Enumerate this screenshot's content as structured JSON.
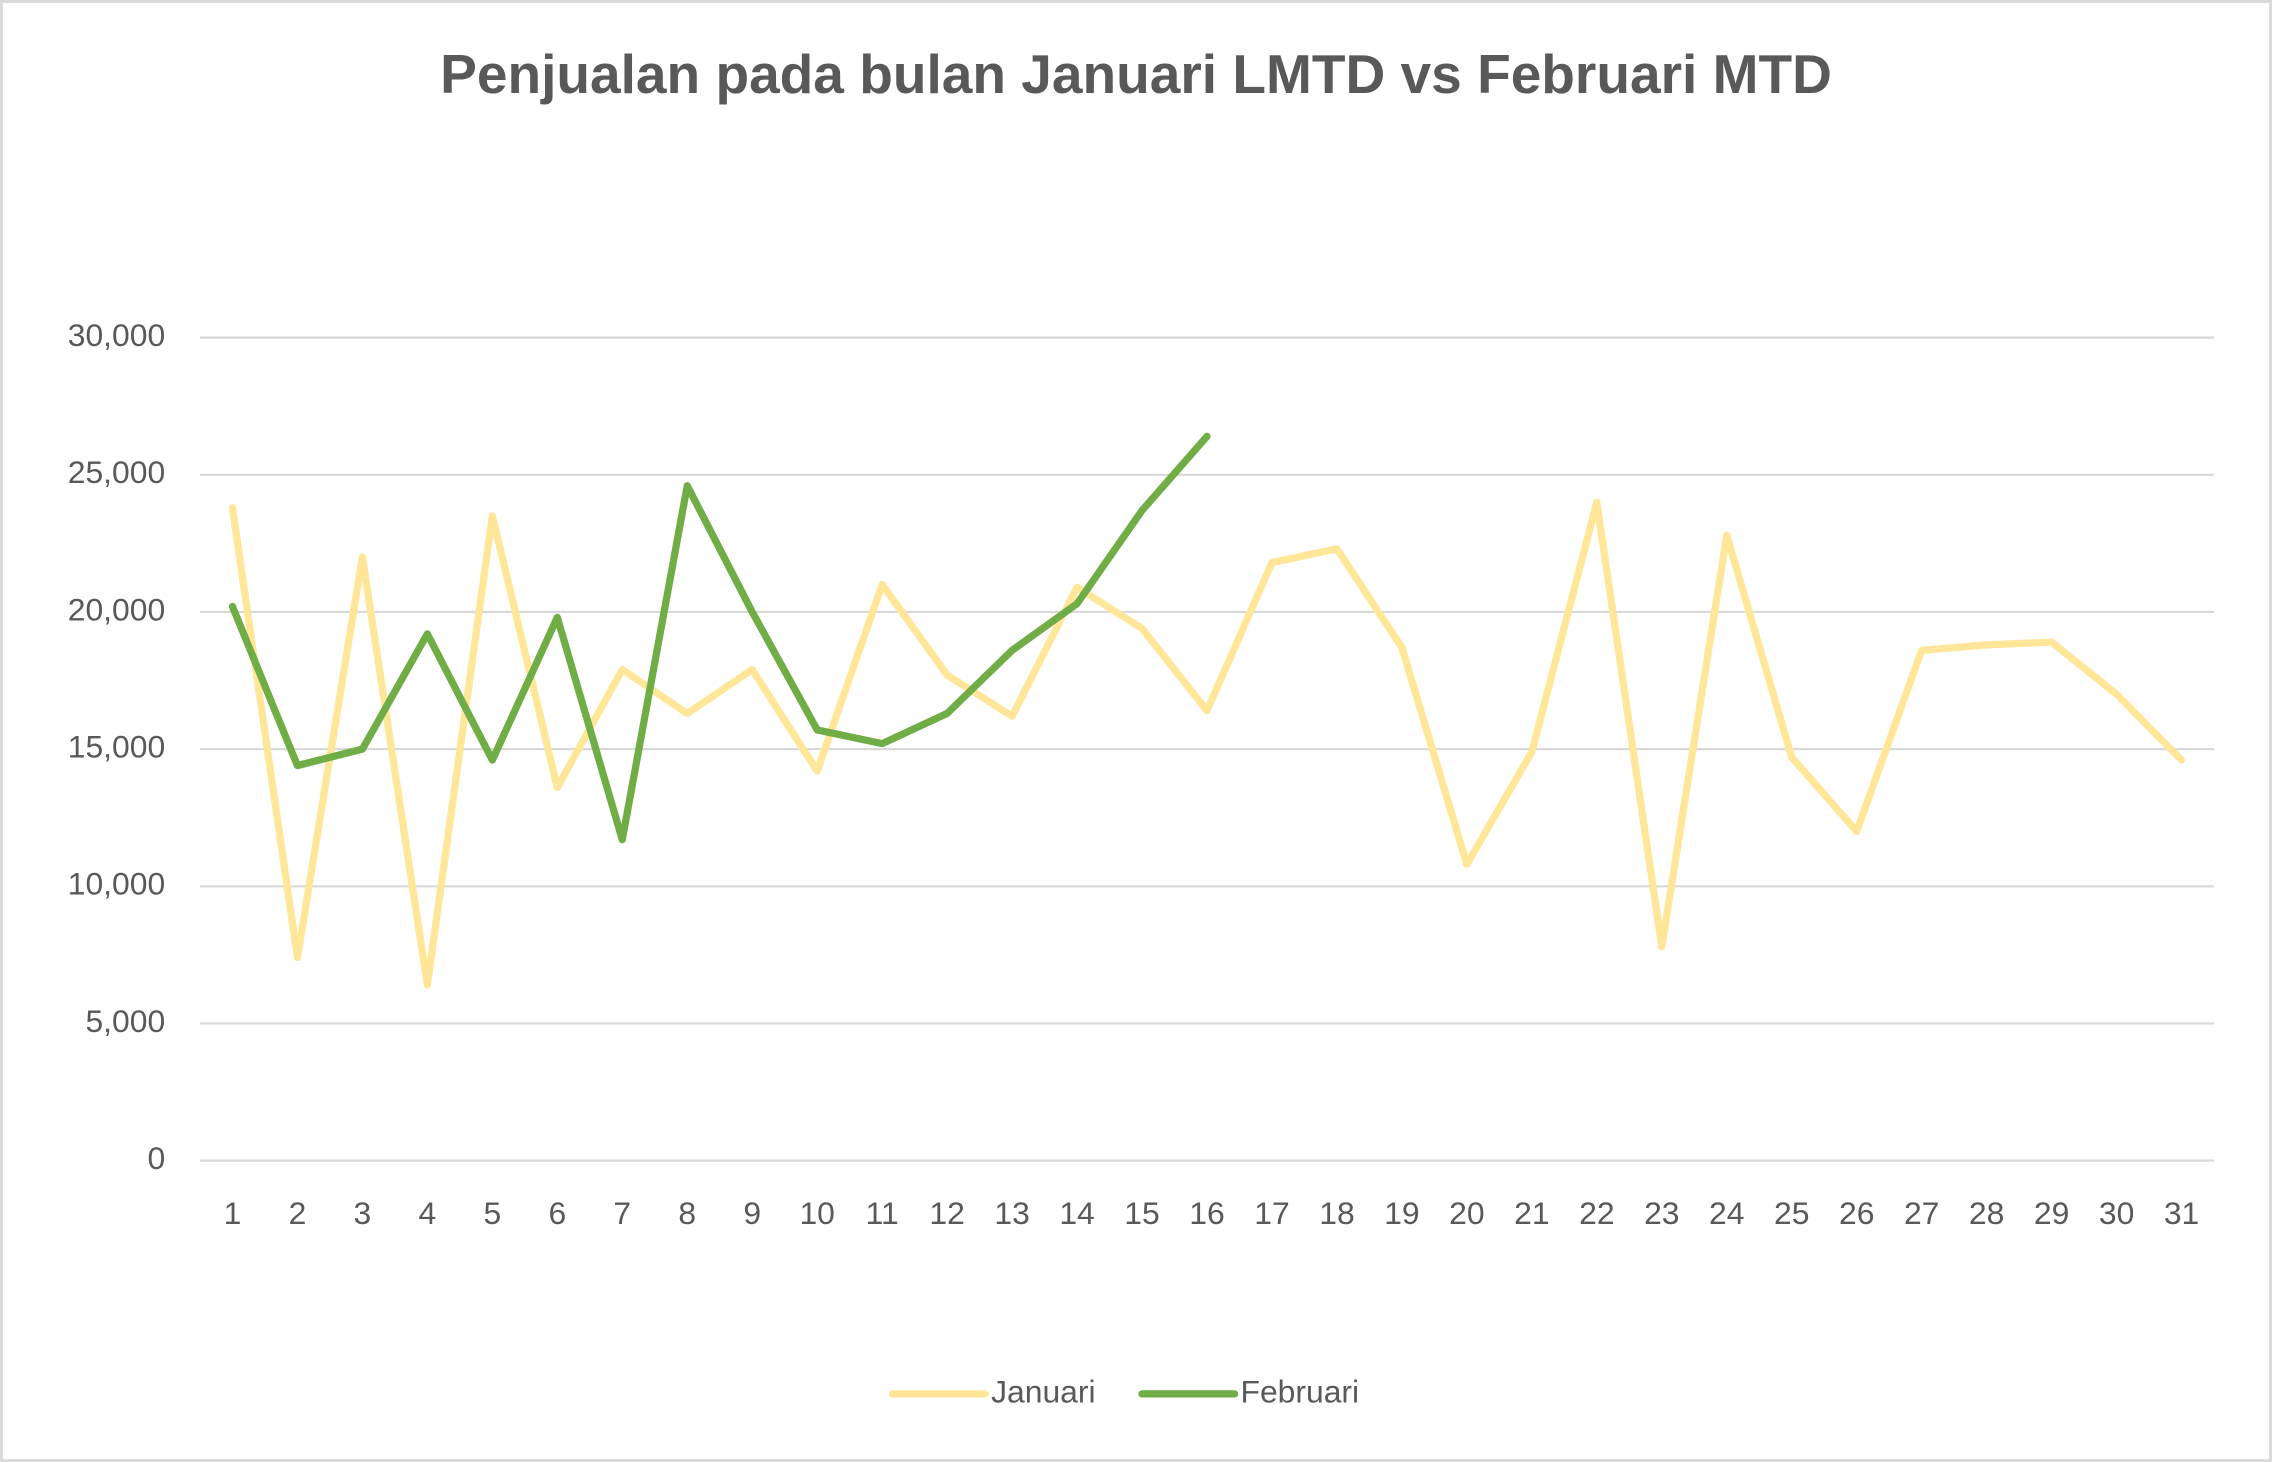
{
  "chart_data": {
    "type": "line",
    "title": "Penjualan pada bulan Januari LMTD vs Februari MTD",
    "categories": [
      "1",
      "2",
      "3",
      "4",
      "5",
      "6",
      "7",
      "8",
      "9",
      "10",
      "11",
      "12",
      "13",
      "14",
      "15",
      "16",
      "17",
      "18",
      "19",
      "20",
      "21",
      "22",
      "23",
      "24",
      "25",
      "26",
      "27",
      "28",
      "29",
      "30",
      "31"
    ],
    "series": [
      {
        "name": "Januari",
        "color": "#ffe699",
        "values": [
          23800,
          7400,
          22000,
          6400,
          23500,
          13600,
          17900,
          16300,
          17900,
          14200,
          21000,
          17700,
          16200,
          20900,
          19400,
          16400,
          21800,
          22300,
          18700,
          10800,
          14900,
          24000,
          7800,
          22800,
          14700,
          12000,
          18600,
          18800,
          18900,
          17000,
          14600
        ]
      },
      {
        "name": "Februari",
        "color": "#70ad47",
        "values": [
          20200,
          14400,
          15000,
          19200,
          14600,
          19800,
          11700,
          24600,
          20000,
          15700,
          15200,
          16300,
          18600,
          20300,
          23700,
          26400,
          null,
          null,
          null,
          null,
          null,
          null,
          null,
          null,
          null,
          null,
          null,
          null,
          null,
          null,
          null
        ]
      }
    ],
    "ylim": [
      0,
      30000
    ],
    "yticks": [
      0,
      {
        "value": 5000,
        "label": "5,000"
      },
      {
        "value": 10000,
        "label": "10,000"
      },
      {
        "value": 15000,
        "label": "15,000"
      },
      {
        "value": 20000,
        "label": "20,000"
      },
      {
        "value": 25000,
        "label": "25,000"
      },
      {
        "value": 30000,
        "label": "30,000"
      }
    ],
    "grid": true,
    "legend": "bottom"
  }
}
